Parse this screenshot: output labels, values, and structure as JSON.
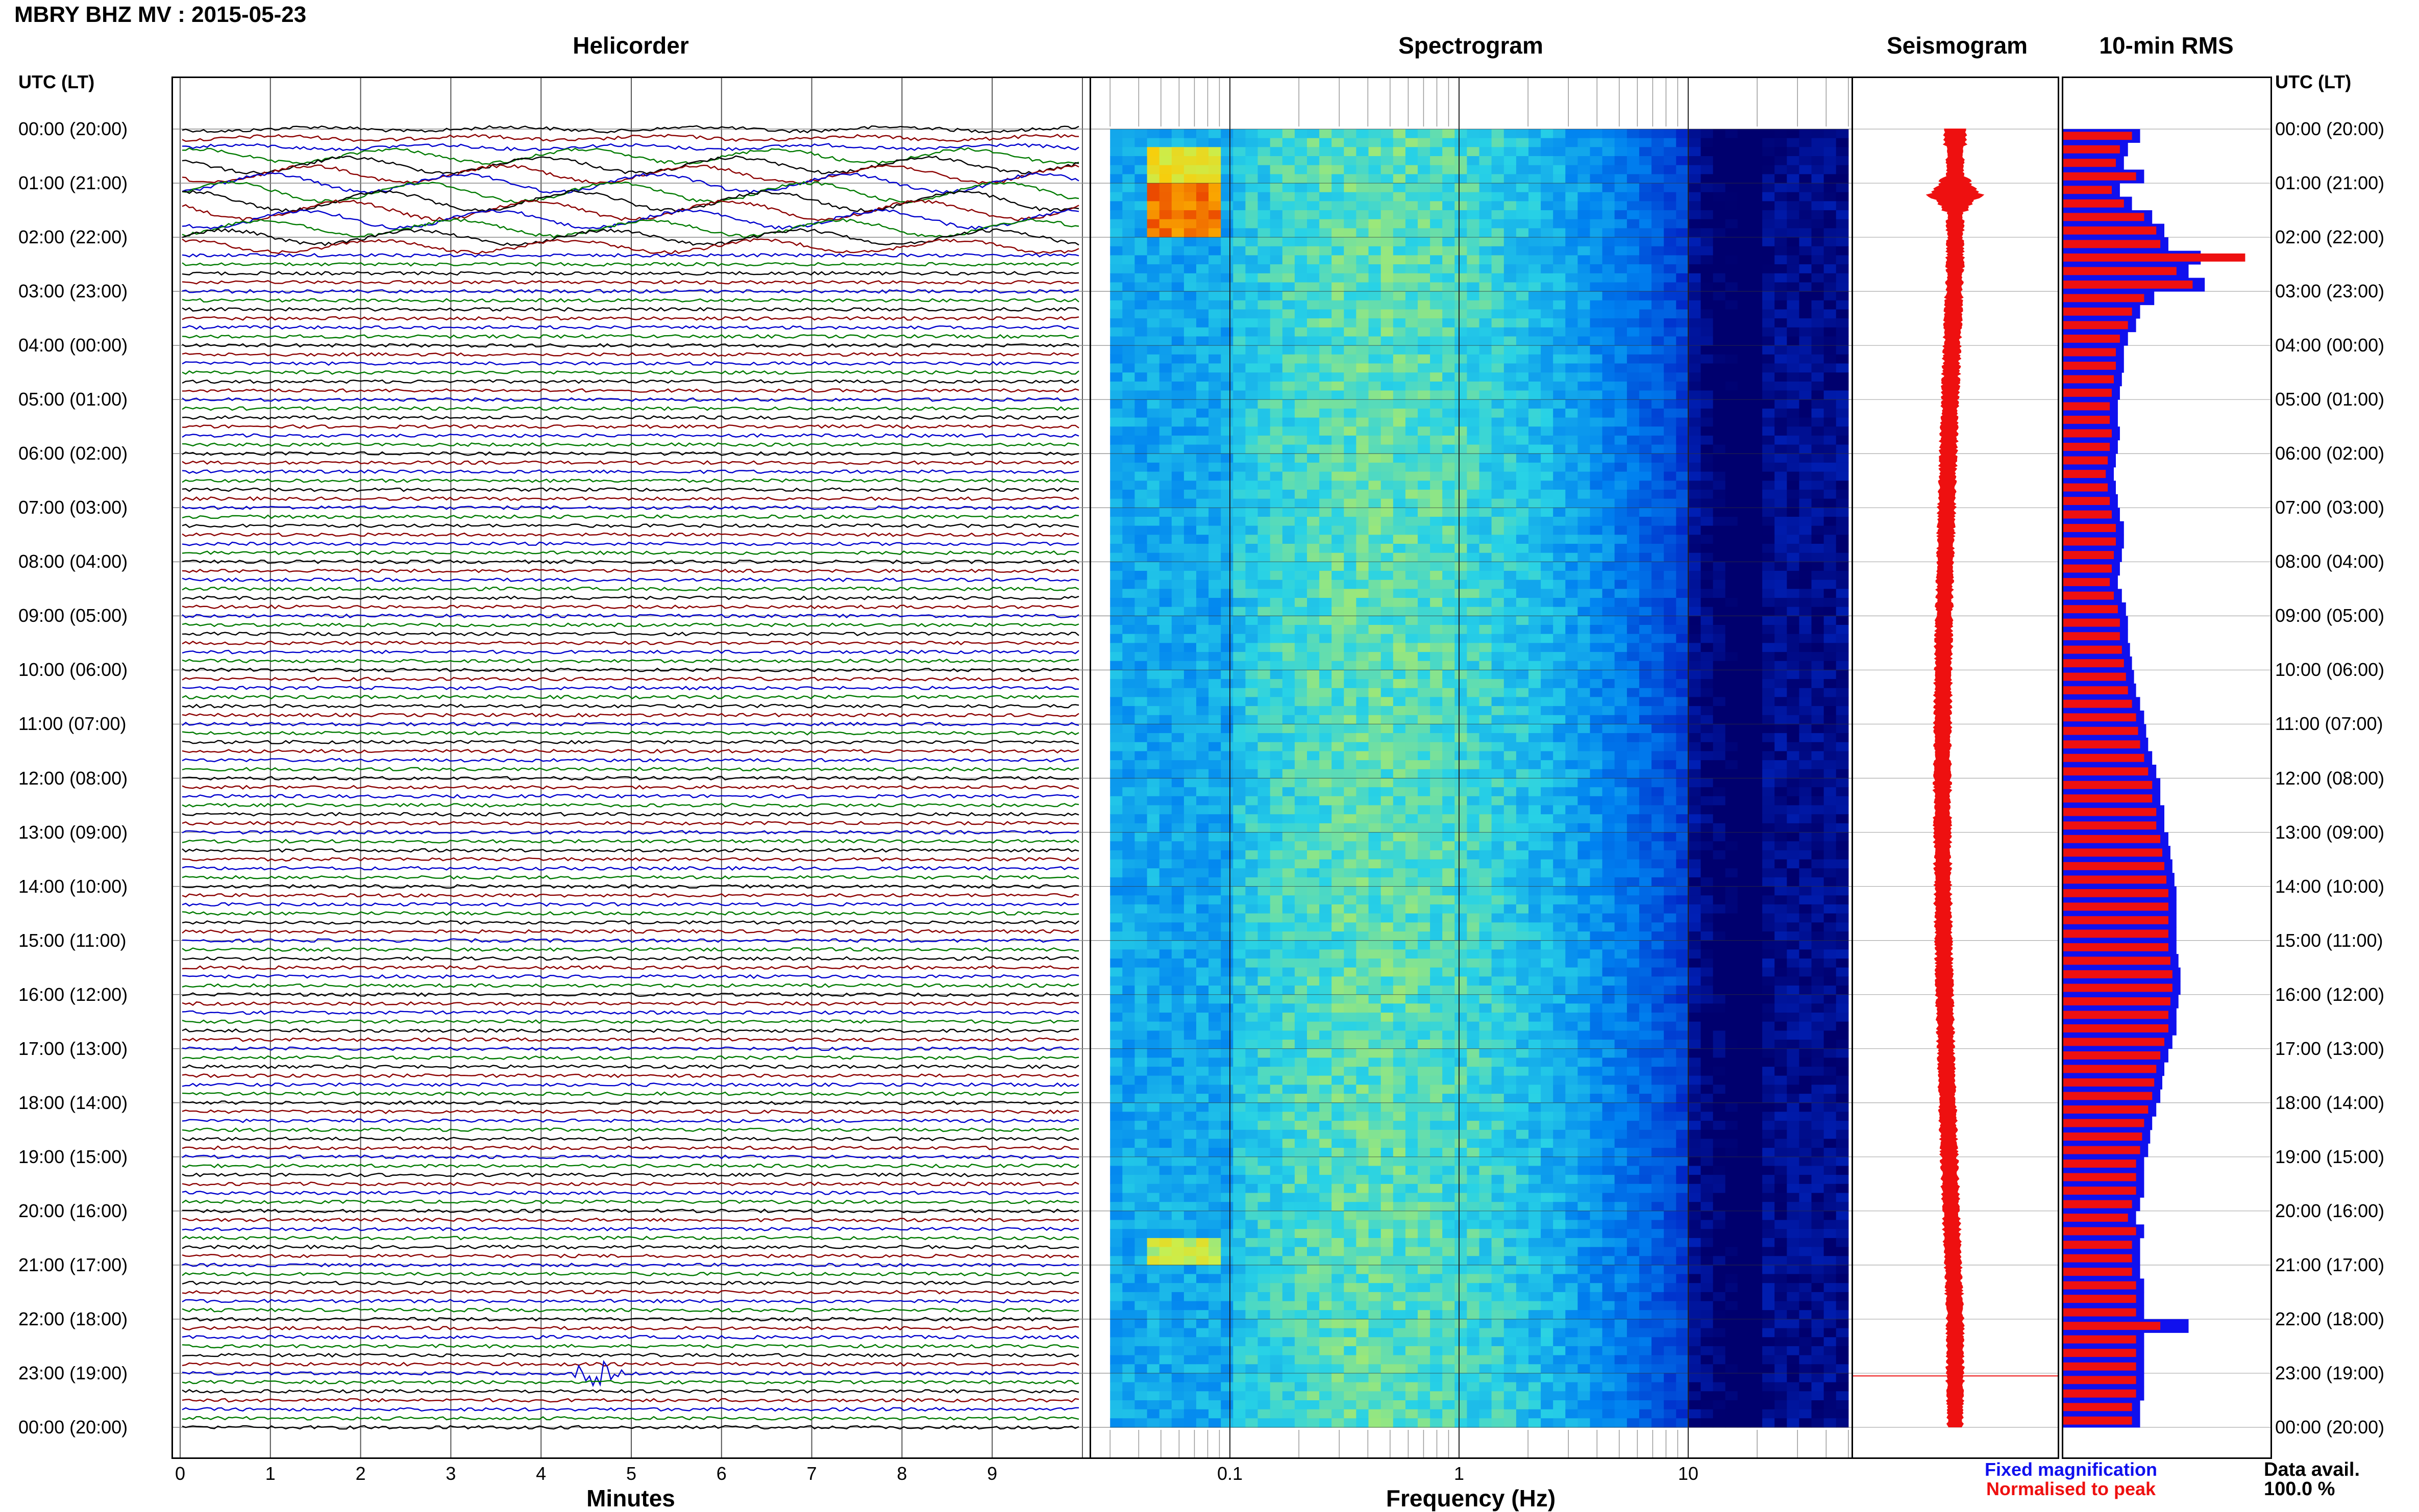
{
  "title": "MBRY BHZ MV : 2015-05-23",
  "panels": {
    "helicorder": "Helicorder",
    "spectrogram": "Spectrogram",
    "seismogram": "Seismogram",
    "rms": "10-min RMS"
  },
  "axis_head_left": "UTC (LT)",
  "axis_head_right": "UTC (LT)",
  "time_labels": [
    "00:00 (20:00)",
    "01:00 (21:00)",
    "02:00 (22:00)",
    "03:00 (23:00)",
    "04:00 (00:00)",
    "05:00 (01:00)",
    "06:00 (02:00)",
    "07:00 (03:00)",
    "08:00 (04:00)",
    "09:00 (05:00)",
    "10:00 (06:00)",
    "11:00 (07:00)",
    "12:00 (08:00)",
    "13:00 (09:00)",
    "14:00 (10:00)",
    "15:00 (11:00)",
    "16:00 (12:00)",
    "17:00 (13:00)",
    "18:00 (14:00)",
    "19:00 (15:00)",
    "20:00 (16:00)",
    "21:00 (17:00)",
    "22:00 (18:00)",
    "23:00 (19:00)",
    "00:00 (20:00)"
  ],
  "legend": {
    "fixed": "Fixed magnification",
    "normalised": "Normalised to peak",
    "data_avail_label": "Data avail.",
    "data_avail_value": "100.0 %"
  },
  "colors": {
    "fixed": "#1010ee",
    "normalised": "#ee1010",
    "trace_black": "#000000",
    "trace_red": "#8b0000",
    "trace_blue": "#0000cd",
    "trace_green": "#007a00"
  },
  "chart_data": [
    {
      "type": "line",
      "title": "Helicorder",
      "xlabel": "Minutes",
      "ylabel": "UTC (LT)",
      "x_ticks": [
        "0",
        "1",
        "2",
        "3",
        "4",
        "5",
        "6",
        "7",
        "8",
        "9"
      ],
      "xlim": [
        0,
        10
      ],
      "trace_colors": [
        "black",
        "red",
        "blue",
        "green"
      ],
      "rows_per_hour": 6,
      "events": [
        {
          "time_utc": "23:00",
          "minute": 4.6,
          "description": "large amplitude burst"
        },
        {
          "time_utc": "01:00",
          "description": "large amplitude long-period oscillations 00:30-02:00"
        }
      ]
    },
    {
      "type": "heatmap",
      "title": "Spectrogram",
      "xlabel": "Frequency (Hz)",
      "x_scale": "log",
      "x_ticks": [
        "0.1",
        "1",
        "10"
      ],
      "xlim": [
        0.03,
        50
      ],
      "features": [
        {
          "time_utc": "01:00-02:00",
          "freq_hz": [
            0.05,
            0.08
          ],
          "level": "high"
        },
        {
          "time_utc": "21:00",
          "freq_hz": [
            0.05,
            0.08
          ],
          "level": "elevated"
        },
        {
          "band_hz": [
            0.2,
            2
          ],
          "level": "moderate"
        }
      ]
    },
    {
      "type": "line",
      "title": "Seismogram",
      "note": "full-day trace, peak near 01:00 and 23:00"
    },
    {
      "type": "bar",
      "title": "10-min RMS",
      "series": [
        {
          "name": "Fixed magnification",
          "values": [
            38,
            32,
            30,
            40,
            28,
            34,
            44,
            50,
            52,
            68,
            62,
            70,
            45,
            38,
            36,
            32,
            30,
            30,
            29,
            28,
            27,
            27,
            28,
            27,
            26,
            25,
            26,
            27,
            28,
            30,
            30,
            29,
            28,
            27,
            29,
            31,
            32,
            32,
            33,
            34,
            35,
            36,
            38,
            40,
            41,
            42,
            44,
            46,
            48,
            48,
            50,
            50,
            52,
            53,
            54,
            55,
            56,
            56,
            56,
            56,
            56,
            57,
            58,
            58,
            57,
            56,
            56,
            54,
            52,
            50,
            49,
            48,
            46,
            44,
            43,
            42,
            40,
            40,
            40,
            38,
            36,
            40,
            38,
            38,
            38,
            40,
            40,
            40,
            62,
            40,
            40,
            40,
            40,
            40,
            38,
            38
          ]
        },
        {
          "name": "Normalised to peak",
          "values": [
            34,
            28,
            26,
            36,
            24,
            30,
            40,
            46,
            48,
            90,
            56,
            64,
            40,
            34,
            32,
            28,
            26,
            26,
            25,
            24,
            23,
            23,
            24,
            23,
            22,
            21,
            22,
            23,
            24,
            26,
            26,
            25,
            24,
            23,
            25,
            27,
            28,
            28,
            29,
            30,
            31,
            32,
            34,
            36,
            37,
            38,
            40,
            42,
            44,
            44,
            46,
            46,
            48,
            49,
            50,
            51,
            52,
            52,
            52,
            52,
            52,
            53,
            54,
            54,
            53,
            52,
            52,
            50,
            48,
            46,
            45,
            44,
            42,
            40,
            39,
            38,
            36,
            36,
            36,
            34,
            32,
            36,
            34,
            34,
            34,
            36,
            36,
            36,
            48,
            36,
            36,
            36,
            36,
            36,
            34,
            34
          ]
        }
      ]
    }
  ]
}
